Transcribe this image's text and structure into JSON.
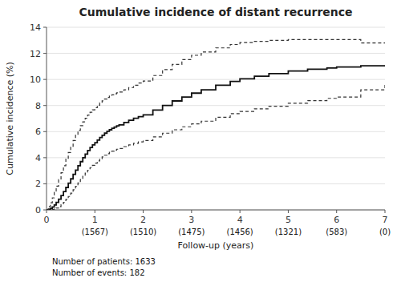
{
  "chart_data": {
    "type": "step",
    "title": "Cumulative incidence of distant recurrence",
    "x_label": "Follow-up (years)",
    "y_label": "Cumulative incidence (%)",
    "xlim": [
      0,
      7
    ],
    "ylim": [
      0,
      14
    ],
    "xticks": [
      0,
      1,
      2,
      3,
      4,
      5,
      6,
      7
    ],
    "yticks": [
      0,
      2,
      4,
      6,
      8,
      10,
      12,
      14
    ],
    "grid": true,
    "x": [
      0.0,
      0.04,
      0.08,
      0.12,
      0.16,
      0.2,
      0.25,
      0.3,
      0.35,
      0.4,
      0.45,
      0.5,
      0.55,
      0.6,
      0.65,
      0.7,
      0.75,
      0.8,
      0.85,
      0.9,
      0.95,
      1.0,
      1.05,
      1.1,
      1.15,
      1.2,
      1.25,
      1.3,
      1.35,
      1.4,
      1.45,
      1.5,
      1.6,
      1.7,
      1.8,
      1.9,
      2.0,
      2.2,
      2.4,
      2.6,
      2.8,
      3.0,
      3.2,
      3.5,
      3.8,
      4.0,
      4.3,
      4.6,
      5.0,
      5.4,
      5.8,
      6.0,
      6.5,
      7.0
    ],
    "series": [
      {
        "color": "#111111",
        "line_style": "solid",
        "values": [
          0.0,
          0.05,
          0.12,
          0.22,
          0.38,
          0.58,
          0.82,
          1.1,
          1.4,
          1.72,
          2.05,
          2.38,
          2.72,
          3.05,
          3.38,
          3.7,
          4.0,
          4.28,
          4.55,
          4.78,
          4.98,
          5.15,
          5.35,
          5.55,
          5.72,
          5.88,
          6.02,
          6.14,
          6.25,
          6.35,
          6.44,
          6.52,
          6.7,
          6.87,
          7.02,
          7.15,
          7.28,
          7.65,
          8.0,
          8.35,
          8.65,
          8.95,
          9.2,
          9.55,
          9.85,
          10.05,
          10.25,
          10.45,
          10.65,
          10.78,
          10.88,
          10.95,
          11.05,
          11.1
        ]
      },
      {
        "color": "#333333",
        "line_style": "dashed",
        "values": [
          0.0,
          0.25,
          0.55,
          0.92,
          1.35,
          1.82,
          2.32,
          2.85,
          3.38,
          3.9,
          4.4,
          4.88,
          5.32,
          5.72,
          6.1,
          6.45,
          6.75,
          7.02,
          7.27,
          7.48,
          7.67,
          7.83,
          8.02,
          8.2,
          8.36,
          8.5,
          8.62,
          8.73,
          8.82,
          8.9,
          8.97,
          9.03,
          9.2,
          9.38,
          9.55,
          9.72,
          9.88,
          10.3,
          10.75,
          11.15,
          11.52,
          11.85,
          12.1,
          12.42,
          12.68,
          12.82,
          12.92,
          13.0,
          13.05,
          13.05,
          13.05,
          13.05,
          12.8,
          12.75
        ]
      },
      {
        "color": "#333333",
        "line_style": "dashed",
        "values": [
          0.0,
          0.0,
          0.01,
          0.03,
          0.08,
          0.15,
          0.25,
          0.4,
          0.58,
          0.8,
          1.03,
          1.28,
          1.54,
          1.8,
          2.06,
          2.33,
          2.58,
          2.82,
          3.04,
          3.24,
          3.42,
          3.58,
          3.75,
          3.92,
          4.06,
          4.19,
          4.31,
          4.41,
          4.5,
          4.58,
          4.65,
          4.71,
          4.85,
          4.98,
          5.1,
          5.21,
          5.32,
          5.6,
          5.88,
          6.14,
          6.37,
          6.59,
          6.8,
          7.1,
          7.38,
          7.55,
          7.75,
          7.95,
          8.18,
          8.38,
          8.55,
          8.65,
          9.2,
          9.65
        ]
      }
    ],
    "annotations": [
      {
        "text": "(1567)",
        "x": 1
      },
      {
        "text": "(1510)",
        "x": 2
      },
      {
        "text": "(1475)",
        "x": 3
      },
      {
        "text": "(1456)",
        "x": 4
      },
      {
        "text": "(1321)",
        "x": 5
      },
      {
        "text": "(583)",
        "x": 6
      },
      {
        "text": "(0)",
        "x": 7
      },
      {
        "text": "Number of patients: 1633"
      },
      {
        "text": "Number of events: 182"
      }
    ]
  }
}
